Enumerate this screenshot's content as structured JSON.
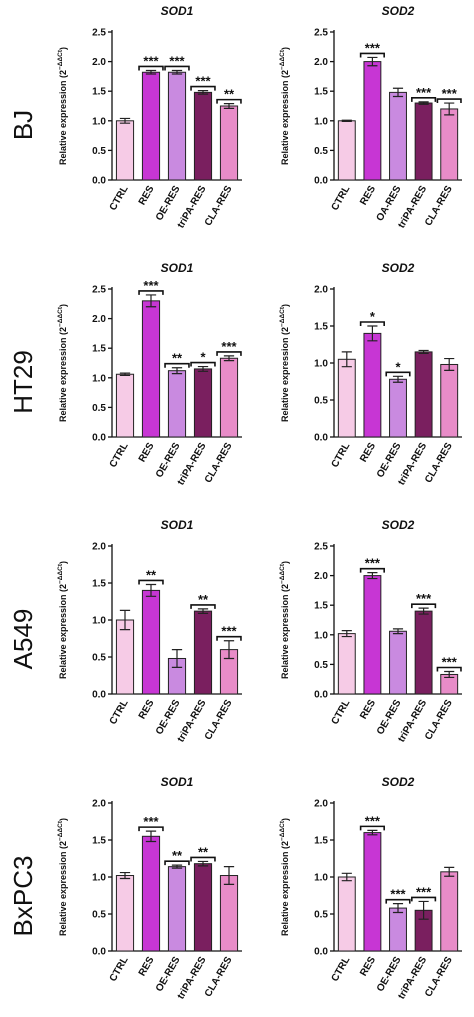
{
  "row_labels": [
    "BJ",
    "HT29",
    "A549",
    "BxPC3"
  ],
  "chart_data": [
    {
      "type": "bar",
      "title": "SOD1",
      "ylabel": {
        "text": "Relative expression (2",
        "superscript": "−ΔΔCt",
        "close": ")"
      },
      "categories": [
        "CTRL",
        "RES",
        "OE-RES",
        "triPA-RES",
        "CLA-RES"
      ],
      "values": [
        1.0,
        1.82,
        1.82,
        1.48,
        1.25
      ],
      "errors": [
        0.04,
        0.03,
        0.03,
        0.03,
        0.04
      ],
      "significance": [
        null,
        "***",
        "***",
        "***",
        "**"
      ],
      "colors": [
        "#f6cbe6",
        "#c736d4",
        "#c98ae0",
        "#7a1f5f",
        "#e88cc8"
      ],
      "ylim": [
        0,
        2.5
      ],
      "yticks": [
        {
          "value": 0,
          "label": "0.0"
        },
        0.5,
        {
          "value": 1,
          "label": "1.0"
        },
        1.5,
        {
          "value": 2,
          "label": "2.0"
        },
        2.5
      ]
    },
    {
      "type": "bar",
      "title": "SOD2",
      "ylabel": {
        "text": "Relative expression (2",
        "superscript": "−ΔΔCt",
        "close": ")"
      },
      "categories": [
        "CTRL",
        "RES",
        "OA-RES",
        "triPA-RES",
        "CLA-RES"
      ],
      "values": [
        1.0,
        2.0,
        1.48,
        1.3,
        1.2
      ],
      "errors": [
        0.01,
        0.07,
        0.07,
        0.02,
        0.1
      ],
      "significance": [
        null,
        "***",
        null,
        "***",
        "***"
      ],
      "colors": [
        "#f6cbe6",
        "#c736d4",
        "#c98ae0",
        "#7a1f5f",
        "#e88cc8"
      ],
      "ylim": [
        0,
        2.5
      ],
      "yticks": [
        {
          "value": 0,
          "label": "0.0"
        },
        0.5,
        {
          "value": 1,
          "label": "1.0"
        },
        1.5,
        {
          "value": 2,
          "label": "2.0"
        },
        2.5
      ]
    },
    {
      "type": "bar",
      "title": "SOD1",
      "ylabel": {
        "text": "Relative expression (2",
        "superscript": "−ΔΔCt",
        "close": ")"
      },
      "categories": [
        "CTRL",
        "RES",
        "OE-RES",
        "triPA-RES",
        "CLA-RES"
      ],
      "values": [
        1.06,
        2.3,
        1.12,
        1.15,
        1.33
      ],
      "errors": [
        0.02,
        0.1,
        0.05,
        0.04,
        0.04
      ],
      "significance": [
        null,
        "***",
        "**",
        "*",
        "***"
      ],
      "colors": [
        "#f6cbe6",
        "#c736d4",
        "#c98ae0",
        "#7a1f5f",
        "#e88cc8"
      ],
      "ylim": [
        0,
        2.5
      ],
      "yticks": [
        {
          "value": 0,
          "label": "0.0"
        },
        0.5,
        {
          "value": 1,
          "label": "1.0"
        },
        1.5,
        {
          "value": 2,
          "label": "2.0"
        },
        2.5
      ]
    },
    {
      "type": "bar",
      "title": "SOD2",
      "ylabel": {
        "text": "Relative expression (2",
        "superscript": "−ΔΔCt",
        "close": ")"
      },
      "categories": [
        "CTRL",
        "RES",
        "OE-RES",
        "triPA-RES",
        "CLA-RES"
      ],
      "values": [
        1.05,
        1.4,
        0.78,
        1.15,
        0.98
      ],
      "errors": [
        0.1,
        0.1,
        0.04,
        0.02,
        0.08
      ],
      "significance": [
        null,
        "*",
        "*",
        null,
        null
      ],
      "colors": [
        "#f6cbe6",
        "#c736d4",
        "#c98ae0",
        "#7a1f5f",
        "#e88cc8"
      ],
      "ylim": [
        0,
        2
      ],
      "yticks": [
        {
          "value": 0,
          "label": "0.0"
        },
        0.5,
        {
          "value": 1,
          "label": "1.0"
        },
        1.5,
        {
          "value": 2,
          "label": "2.0"
        }
      ]
    },
    {
      "type": "bar",
      "title": "SOD1",
      "ylabel": {
        "text": "Relative expression (2",
        "superscript": "−ΔΔCt",
        "close": ")"
      },
      "categories": [
        "CTRL",
        "RES",
        "OE-RES",
        "triPA-RES",
        "CLA-RES"
      ],
      "values": [
        1.0,
        1.4,
        0.48,
        1.12,
        0.6
      ],
      "errors": [
        0.13,
        0.08,
        0.12,
        0.03,
        0.12
      ],
      "significance": [
        null,
        "**",
        null,
        "**",
        "***"
      ],
      "colors": [
        "#f6cbe6",
        "#c736d4",
        "#c98ae0",
        "#7a1f5f",
        "#e88cc8"
      ],
      "ylim": [
        0,
        2
      ],
      "yticks": [
        {
          "value": 0,
          "label": "0.0"
        },
        0.5,
        {
          "value": 1,
          "label": "1.0"
        },
        1.5,
        {
          "value": 2,
          "label": "2.0"
        }
      ]
    },
    {
      "type": "bar",
      "title": "SOD2",
      "ylabel": {
        "text": "Relative expression (2",
        "superscript": "−ΔΔCt",
        "close": ")"
      },
      "categories": [
        "CTRL",
        "RES",
        "OE-RES",
        "triPA-RES",
        "CLA-RES"
      ],
      "values": [
        1.02,
        2.0,
        1.06,
        1.4,
        0.33
      ],
      "errors": [
        0.05,
        0.05,
        0.04,
        0.05,
        0.05
      ],
      "significance": [
        null,
        "***",
        null,
        "***",
        "***"
      ],
      "colors": [
        "#f6cbe6",
        "#c736d4",
        "#c98ae0",
        "#7a1f5f",
        "#e88cc8"
      ],
      "ylim": [
        0,
        2.5
      ],
      "yticks": [
        {
          "value": 0,
          "label": "0.0"
        },
        0.5,
        {
          "value": 1,
          "label": "1.0"
        },
        1.5,
        {
          "value": 2,
          "label": "2.0"
        },
        2.5
      ]
    },
    {
      "type": "bar",
      "title": "SOD1",
      "ylabel": {
        "text": "Relative expression (2",
        "superscript": "−ΔΔCt",
        "close": ")"
      },
      "categories": [
        "CTRL",
        "RES",
        "OE-RES",
        "triPA-RES",
        "CLA-RES"
      ],
      "values": [
        1.02,
        1.55,
        1.14,
        1.18,
        1.02
      ],
      "errors": [
        0.04,
        0.07,
        0.02,
        0.03,
        0.12
      ],
      "significance": [
        null,
        "***",
        "**",
        "**",
        null
      ],
      "colors": [
        "#f6cbe6",
        "#c736d4",
        "#c98ae0",
        "#7a1f5f",
        "#e88cc8"
      ],
      "ylim": [
        0,
        2
      ],
      "yticks": [
        {
          "value": 0,
          "label": "0.0"
        },
        0.5,
        {
          "value": 1,
          "label": "1.0"
        },
        1.5,
        {
          "value": 2,
          "label": "2.0"
        }
      ]
    },
    {
      "type": "bar",
      "title": "SOD2",
      "ylabel": {
        "text": "Relative expression (2",
        "superscript": "−ΔΔCt",
        "close": ")"
      },
      "categories": [
        "CTRL",
        "RES",
        "OE-RES",
        "triPA-RES",
        "CLA-RES"
      ],
      "values": [
        1.0,
        1.6,
        0.58,
        0.55,
        1.07
      ],
      "errors": [
        0.05,
        0.03,
        0.06,
        0.12,
        0.06
      ],
      "significance": [
        null,
        "***",
        "***",
        "***",
        null
      ],
      "colors": [
        "#f6cbe6",
        "#c736d4",
        "#c98ae0",
        "#7a1f5f",
        "#e88cc8"
      ],
      "ylim": [
        0,
        2
      ],
      "yticks": [
        {
          "value": 0,
          "label": "0.0"
        },
        0.5,
        {
          "value": 1,
          "label": "1.0"
        },
        1.5,
        {
          "value": 2,
          "label": "2.0"
        }
      ]
    }
  ]
}
